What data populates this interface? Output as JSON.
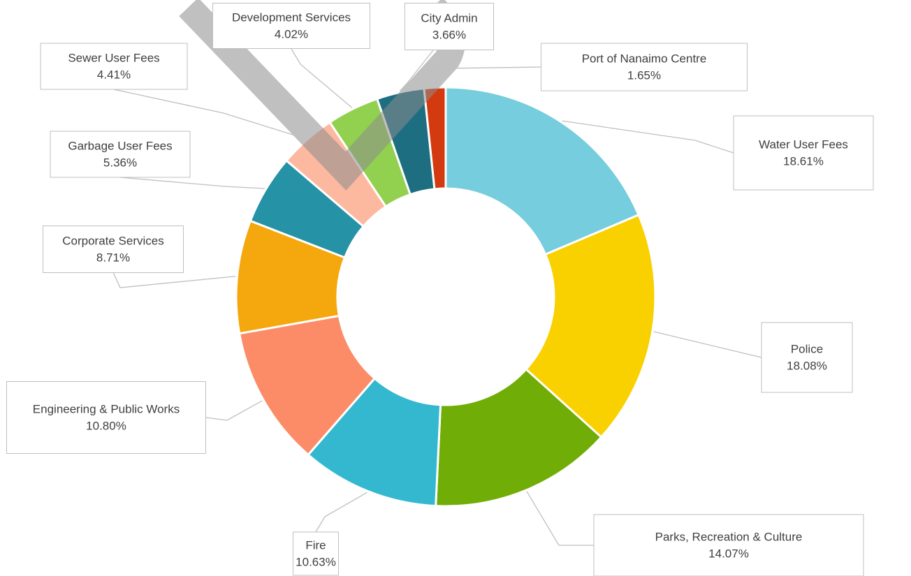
{
  "chart_data": {
    "type": "donut",
    "categories": [
      "Water User Fees",
      "Police",
      "Parks, Recreation & Culture",
      "Fire",
      "Engineering & Public Works",
      "Corporate Services",
      "Garbage User Fees",
      "Sewer User Fees",
      "Development Services",
      "City Admin",
      "Port of Nanaimo Centre"
    ],
    "values": [
      18.61,
      18.08,
      14.07,
      10.63,
      10.8,
      8.71,
      5.36,
      4.41,
      4.02,
      3.66,
      1.65
    ],
    "value_labels": [
      "18.61%",
      "18.08%",
      "14.07%",
      "10.63%",
      "10.80%",
      "8.71%",
      "5.36%",
      "4.41%",
      "4.02%",
      "3.66%",
      "1.65%"
    ],
    "colors": [
      "#76cddd",
      "#f9d000",
      "#70ad06",
      "#33b8cf",
      "#fc8c68",
      "#f5a70e",
      "#2592a6",
      "#fdb9a0",
      "#92d050",
      "#1c6e80",
      "#d43a0f"
    ]
  }
}
